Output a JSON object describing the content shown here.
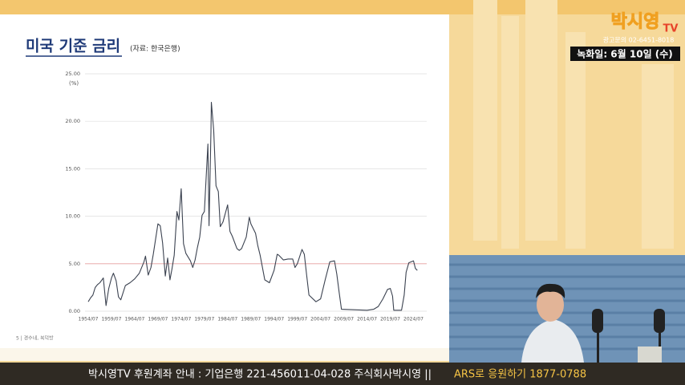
{
  "chart_data": {
    "type": "line",
    "title": "미국 기준 금리",
    "subtitle": "(자료: 한국은행)",
    "y_label": "(%)",
    "x": [
      "1954/07",
      "1955/01",
      "1955/07",
      "1956/01",
      "1956/07",
      "1957/01",
      "1957/10",
      "1958/05",
      "1958/12",
      "1959/07",
      "1959/12",
      "1960/07",
      "1961/01",
      "1961/07",
      "1962/07",
      "1963/07",
      "1964/07",
      "1965/07",
      "1966/07",
      "1966/11",
      "1967/06",
      "1968/01",
      "1968/07",
      "1969/07",
      "1970/01",
      "1970/07",
      "1971/02",
      "1971/08",
      "1972/02",
      "1972/07",
      "1973/01",
      "1973/08",
      "1974/01",
      "1974/07",
      "1975/01",
      "1975/07",
      "1976/07",
      "1977/01",
      "1977/07",
      "1978/01",
      "1978/07",
      "1979/01",
      "1979/07",
      "1980/04",
      "1980/07",
      "1980/12",
      "1981/01",
      "1981/07",
      "1982/01",
      "1982/07",
      "1982/12",
      "1983/07",
      "1984/07",
      "1985/01",
      "1985/07",
      "1986/07",
      "1987/01",
      "1987/07",
      "1988/07",
      "1989/03",
      "1989/07",
      "1990/07",
      "1991/01",
      "1991/07",
      "1992/07",
      "1993/07",
      "1994/07",
      "1995/03",
      "1995/07",
      "1996/07",
      "1997/07",
      "1998/07",
      "1999/01",
      "1999/07",
      "2000/07",
      "2001/01",
      "2001/07",
      "2002/01",
      "2003/07",
      "2004/07",
      "2005/07",
      "2006/07",
      "2007/07",
      "2008/01",
      "2008/07",
      "2009/01",
      "2014/07",
      "2015/12",
      "2016/12",
      "2017/12",
      "2018/12",
      "2019/07",
      "2020/01",
      "2020/04",
      "2021/12",
      "2022/07",
      "2022/12",
      "2023/07",
      "2024/07",
      "2024/12",
      "2025/05"
    ],
    "values": [
      1.0,
      1.4,
      1.7,
      2.5,
      2.8,
      3.0,
      3.5,
      0.6,
      2.4,
      3.5,
      4.0,
      3.2,
      1.5,
      1.2,
      2.7,
      3.0,
      3.4,
      4.0,
      5.2,
      5.8,
      3.8,
      4.6,
      6.0,
      9.2,
      9.0,
      7.2,
      3.7,
      5.6,
      3.3,
      4.4,
      5.9,
      10.5,
      9.6,
      12.9,
      7.1,
      6.1,
      5.3,
      4.6,
      5.4,
      6.7,
      7.8,
      10.1,
      10.5,
      17.6,
      9.0,
      18.9,
      22.0,
      19.1,
      13.2,
      12.6,
      8.9,
      9.4,
      11.2,
      8.4,
      7.9,
      6.6,
      6.4,
      6.6,
      7.8,
      9.9,
      9.2,
      8.2,
      6.9,
      5.9,
      3.3,
      3.0,
      4.3,
      6.0,
      5.9,
      5.4,
      5.5,
      5.5,
      4.6,
      5.0,
      6.5,
      6.0,
      3.8,
      1.7,
      1.0,
      1.3,
      3.3,
      5.2,
      5.3,
      3.9,
      2.0,
      0.2,
      0.1,
      0.2,
      0.5,
      1.3,
      2.3,
      2.4,
      1.6,
      0.1,
      0.1,
      1.7,
      4.1,
      5.1,
      5.3,
      4.5,
      4.3
    ],
    "color": "#3b4250",
    "xlim": [
      "1954/07",
      "2027/01"
    ],
    "xticks": [
      "1954/07",
      "1959/07",
      "1964/07",
      "1969/07",
      "1974/07",
      "1979/07",
      "1984/07",
      "1989/07",
      "1994/07",
      "1999/07",
      "2004/07",
      "2009/07",
      "2014/07",
      "2019/07",
      "2024/07"
    ],
    "ylim": [
      0,
      25
    ],
    "yticks": [
      {
        "value": 0,
        "label": "0.00"
      },
      {
        "value": 5,
        "label": "5.00"
      },
      {
        "value": 10,
        "label": "10.00"
      },
      {
        "value": 15,
        "label": "15.00"
      },
      {
        "value": 20,
        "label": "20.00"
      },
      {
        "value": 25,
        "label": "25.00"
      }
    ],
    "grid": true,
    "reference_line": 5,
    "reference_color": "#e8a0a0"
  },
  "slide": {
    "footer": "5 | 경수네, 북덕방"
  },
  "overlay": {
    "logo": "박시영",
    "logo_tv": "TV",
    "contact": "광고문의 02-6451-8018",
    "record_date": "녹화일: 6월 10일 (수)",
    "banner_main": "박시영TV 후원계좌 안내 : 기업은행 221-456011-04-028 주식회사박시영 ||",
    "banner_ars": "ARS로 응원하기 1877-0788"
  }
}
